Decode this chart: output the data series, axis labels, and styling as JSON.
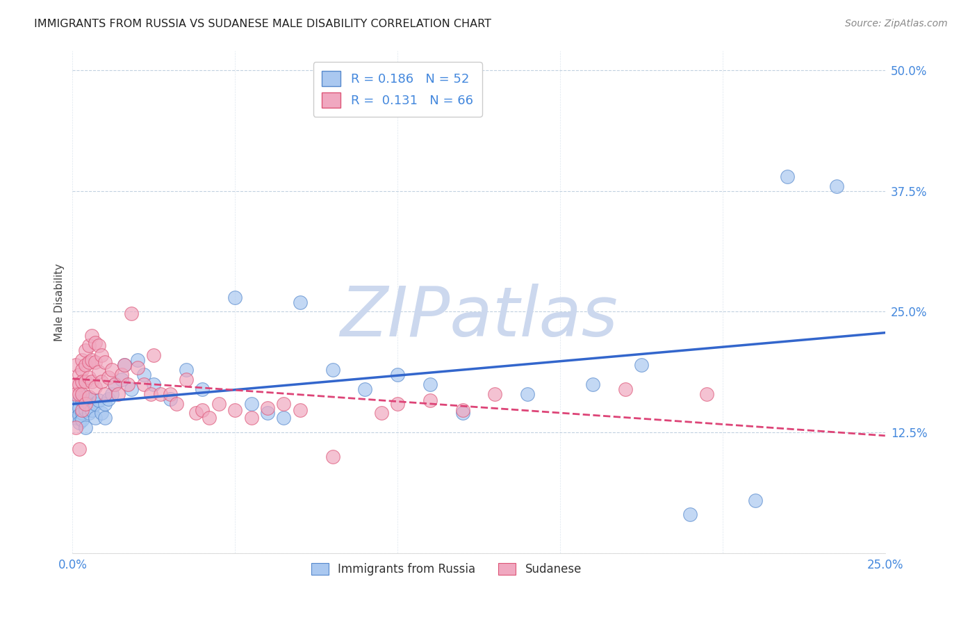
{
  "title": "IMMIGRANTS FROM RUSSIA VS SUDANESE MALE DISABILITY CORRELATION CHART",
  "source": "Source: ZipAtlas.com",
  "ylabel": "Male Disability",
  "xlim": [
    0.0,
    0.25
  ],
  "ylim": [
    0.0,
    0.52
  ],
  "xticks": [
    0.0,
    0.05,
    0.1,
    0.15,
    0.2,
    0.25
  ],
  "yticks": [
    0.0,
    0.125,
    0.25,
    0.375,
    0.5
  ],
  "russia_R": 0.186,
  "russia_N": 52,
  "sudanese_R": 0.131,
  "sudanese_N": 66,
  "russia_color": "#aac8f0",
  "sudanese_color": "#f0a8c0",
  "russia_edge_color": "#5588cc",
  "sudanese_edge_color": "#dd5577",
  "russia_line_color": "#3366cc",
  "sudanese_line_color": "#dd4477",
  "legend_label_russia": "Immigrants from Russia",
  "legend_label_sudanese": "Sudanese",
  "watermark": "ZIPatlas",
  "watermark_color": "#ccd8ee",
  "background_color": "#ffffff",
  "tick_color": "#4488dd",
  "russia_points_x": [
    0.001,
    0.001,
    0.001,
    0.002,
    0.002,
    0.002,
    0.002,
    0.003,
    0.003,
    0.003,
    0.004,
    0.004,
    0.004,
    0.005,
    0.005,
    0.006,
    0.006,
    0.007,
    0.007,
    0.008,
    0.009,
    0.01,
    0.01,
    0.011,
    0.012,
    0.013,
    0.015,
    0.016,
    0.018,
    0.02,
    0.022,
    0.025,
    0.03,
    0.035,
    0.04,
    0.05,
    0.055,
    0.06,
    0.065,
    0.07,
    0.08,
    0.09,
    0.1,
    0.11,
    0.12,
    0.14,
    0.16,
    0.175,
    0.19,
    0.21,
    0.22,
    0.235
  ],
  "russia_points_y": [
    0.155,
    0.148,
    0.14,
    0.16,
    0.15,
    0.143,
    0.135,
    0.158,
    0.145,
    0.138,
    0.162,
    0.148,
    0.13,
    0.155,
    0.145,
    0.16,
    0.148,
    0.155,
    0.14,
    0.158,
    0.145,
    0.155,
    0.14,
    0.16,
    0.165,
    0.175,
    0.18,
    0.195,
    0.17,
    0.2,
    0.185,
    0.175,
    0.16,
    0.19,
    0.17,
    0.265,
    0.155,
    0.145,
    0.14,
    0.26,
    0.19,
    0.17,
    0.185,
    0.175,
    0.145,
    0.165,
    0.175,
    0.195,
    0.04,
    0.055,
    0.39,
    0.38
  ],
  "sudanese_points_x": [
    0.001,
    0.001,
    0.001,
    0.001,
    0.002,
    0.002,
    0.002,
    0.002,
    0.003,
    0.003,
    0.003,
    0.003,
    0.003,
    0.004,
    0.004,
    0.004,
    0.004,
    0.005,
    0.005,
    0.005,
    0.005,
    0.006,
    0.006,
    0.006,
    0.007,
    0.007,
    0.007,
    0.008,
    0.008,
    0.009,
    0.009,
    0.01,
    0.01,
    0.011,
    0.012,
    0.013,
    0.014,
    0.015,
    0.016,
    0.017,
    0.018,
    0.02,
    0.022,
    0.024,
    0.025,
    0.027,
    0.03,
    0.032,
    0.035,
    0.038,
    0.04,
    0.042,
    0.045,
    0.05,
    0.055,
    0.06,
    0.065,
    0.07,
    0.08,
    0.095,
    0.1,
    0.11,
    0.12,
    0.13,
    0.17,
    0.195
  ],
  "sudanese_points_y": [
    0.195,
    0.175,
    0.165,
    0.13,
    0.185,
    0.175,
    0.165,
    0.108,
    0.2,
    0.19,
    0.178,
    0.165,
    0.148,
    0.21,
    0.195,
    0.178,
    0.155,
    0.215,
    0.198,
    0.182,
    0.162,
    0.225,
    0.2,
    0.178,
    0.218,
    0.198,
    0.172,
    0.215,
    0.188,
    0.205,
    0.178,
    0.198,
    0.165,
    0.182,
    0.19,
    0.175,
    0.165,
    0.185,
    0.195,
    0.175,
    0.248,
    0.192,
    0.175,
    0.165,
    0.205,
    0.165,
    0.165,
    0.155,
    0.18,
    0.145,
    0.148,
    0.14,
    0.155,
    0.148,
    0.14,
    0.15,
    0.155,
    0.148,
    0.1,
    0.145,
    0.155,
    0.158,
    0.148,
    0.165,
    0.17,
    0.165
  ]
}
